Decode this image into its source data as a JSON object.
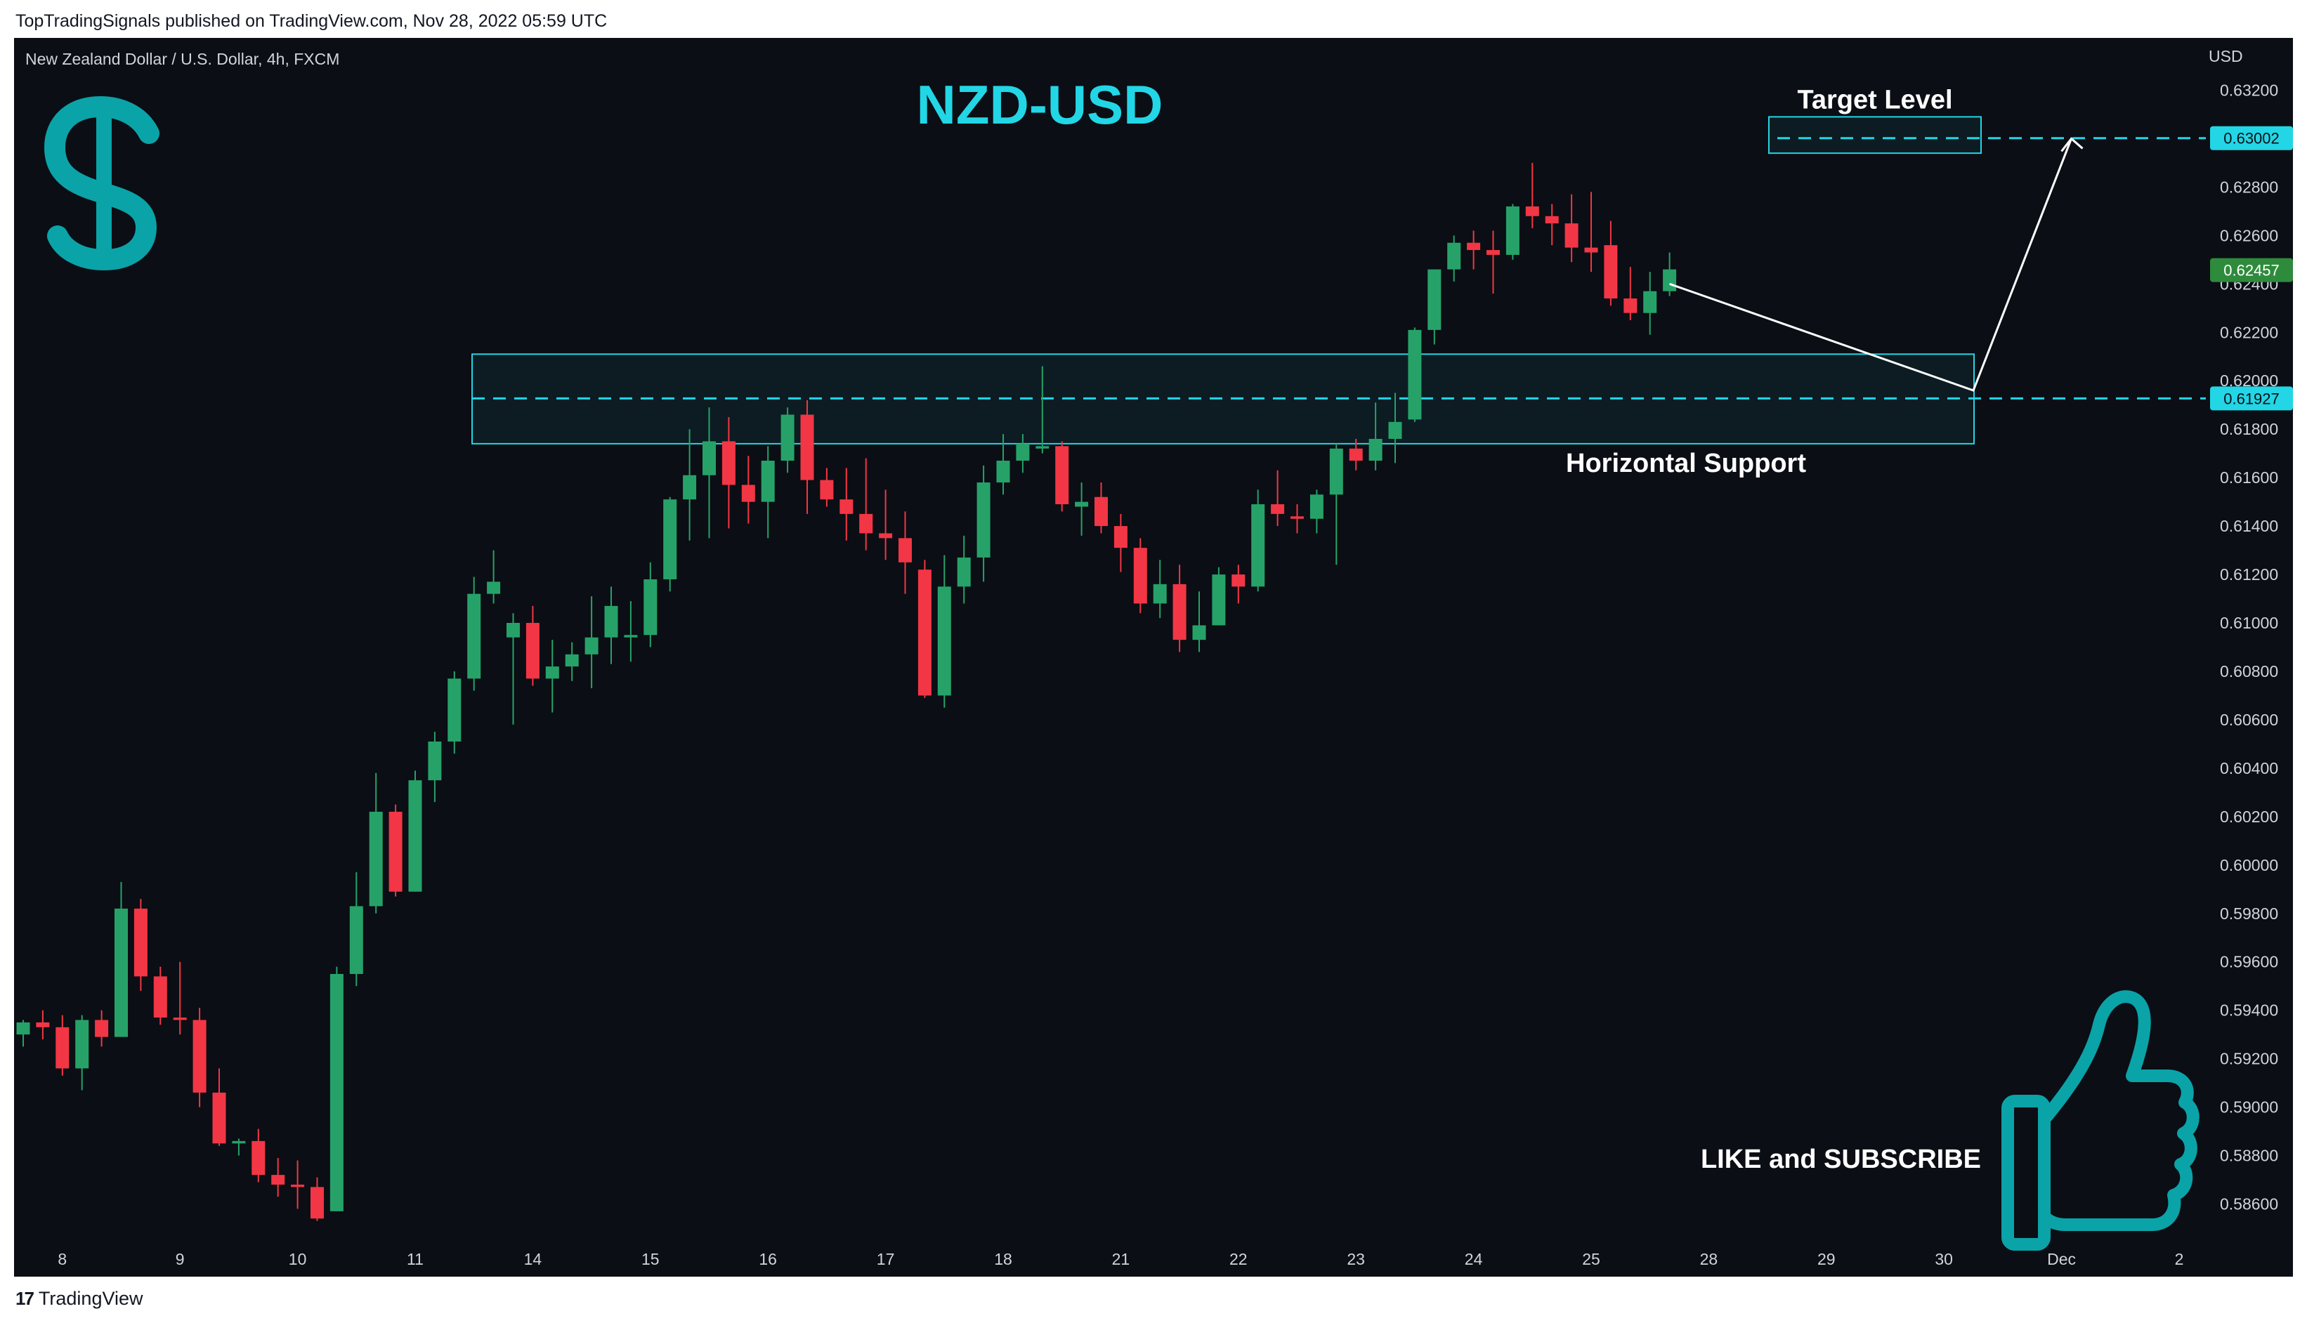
{
  "header": {
    "published_line": "TopTradingSignals published on TradingView.com, Nov 28, 2022 05:59 UTC"
  },
  "footer": {
    "brand_mark": "17",
    "brand_name": "TradingView"
  },
  "colors": {
    "up": "#26a269",
    "down": "#f23645",
    "accent": "#22d6e6",
    "background": "#0b0e14",
    "text": "#d1d4dc",
    "current_price_tag": "#2e8b3c"
  },
  "icons": [
    "dollar-icon",
    "thumbs-up-icon"
  ],
  "chart_data": {
    "type": "candlestick",
    "symbol_line": "New Zealand Dollar / U.S. Dollar, 4h, FXCM",
    "title": "NZD-USD",
    "currency": "USD",
    "timeframe": "4h",
    "ylim": [
      0.585,
      0.633
    ],
    "y_ticks": [
      "0.63200",
      "0.63000",
      "0.62800",
      "0.62600",
      "0.62400",
      "0.62200",
      "0.62000",
      "0.61800",
      "0.61600",
      "0.61400",
      "0.61200",
      "0.61000",
      "0.60800",
      "0.60600",
      "0.60400",
      "0.60200",
      "0.60000",
      "0.59800",
      "0.59600",
      "0.59400",
      "0.59200",
      "0.59000",
      "0.58800",
      "0.58600"
    ],
    "x_ticks": [
      {
        "label": "8",
        "i": 2
      },
      {
        "label": "9",
        "i": 8
      },
      {
        "label": "10",
        "i": 14
      },
      {
        "label": "11",
        "i": 20
      },
      {
        "label": "14",
        "i": 26
      },
      {
        "label": "15",
        "i": 32
      },
      {
        "label": "16",
        "i": 38
      },
      {
        "label": "17",
        "i": 44
      },
      {
        "label": "18",
        "i": 50
      },
      {
        "label": "21",
        "i": 56
      },
      {
        "label": "22",
        "i": 62
      },
      {
        "label": "23",
        "i": 68
      },
      {
        "label": "24",
        "i": 74
      },
      {
        "label": "25",
        "i": 80
      },
      {
        "label": "28",
        "i": 86
      },
      {
        "label": "29",
        "i": 92
      },
      {
        "label": "30",
        "i": 98
      },
      {
        "label": "Dec",
        "i": 104
      },
      {
        "label": "2",
        "i": 110
      }
    ],
    "candles": [
      [
        0.593,
        0.5936,
        0.5925,
        0.5935
      ],
      [
        0.5935,
        0.594,
        0.5928,
        0.5933
      ],
      [
        0.5933,
        0.5938,
        0.5913,
        0.5916
      ],
      [
        0.5916,
        0.5938,
        0.5907,
        0.5936
      ],
      [
        0.5936,
        0.594,
        0.5925,
        0.5929
      ],
      [
        0.5929,
        0.5993,
        0.5929,
        0.5982
      ],
      [
        0.5982,
        0.5986,
        0.5948,
        0.5954
      ],
      [
        0.5954,
        0.5958,
        0.5934,
        0.5937
      ],
      [
        0.5937,
        0.596,
        0.593,
        0.5936
      ],
      [
        0.5936,
        0.5941,
        0.59,
        0.5906
      ],
      [
        0.5906,
        0.5916,
        0.5884,
        0.5885
      ],
      [
        0.5885,
        0.5887,
        0.588,
        0.5886
      ],
      [
        0.5886,
        0.5891,
        0.5869,
        0.5872
      ],
      [
        0.5872,
        0.5879,
        0.5863,
        0.5868
      ],
      [
        0.5868,
        0.5878,
        0.5858,
        0.5867
      ],
      [
        0.5867,
        0.5871,
        0.5853,
        0.5854
      ],
      [
        0.5857,
        0.5958,
        0.5857,
        0.5955
      ],
      [
        0.5955,
        0.5997,
        0.595,
        0.5983
      ],
      [
        0.5983,
        0.6038,
        0.598,
        0.6022
      ],
      [
        0.6022,
        0.6025,
        0.5987,
        0.5989
      ],
      [
        0.5989,
        0.6039,
        0.5989,
        0.6035
      ],
      [
        0.6035,
        0.6055,
        0.6026,
        0.6051
      ],
      [
        0.6051,
        0.608,
        0.6046,
        0.6077
      ],
      [
        0.6077,
        0.6119,
        0.6072,
        0.6112
      ],
      [
        0.6112,
        0.613,
        0.6108,
        0.6117
      ],
      [
        0.6094,
        0.6104,
        0.6058,
        0.61
      ],
      [
        0.61,
        0.6107,
        0.6074,
        0.6077
      ],
      [
        0.6077,
        0.6093,
        0.6063,
        0.6082
      ],
      [
        0.6082,
        0.6092,
        0.6076,
        0.6087
      ],
      [
        0.6087,
        0.6111,
        0.6073,
        0.6094
      ],
      [
        0.6094,
        0.6115,
        0.6083,
        0.6107
      ],
      [
        0.6094,
        0.6109,
        0.6084,
        0.6095
      ],
      [
        0.6095,
        0.6125,
        0.609,
        0.6118
      ],
      [
        0.6118,
        0.6152,
        0.6113,
        0.6151
      ],
      [
        0.6151,
        0.618,
        0.6134,
        0.6161
      ],
      [
        0.6161,
        0.6189,
        0.6135,
        0.6175
      ],
      [
        0.6175,
        0.6185,
        0.6139,
        0.6157
      ],
      [
        0.6157,
        0.6169,
        0.6141,
        0.615
      ],
      [
        0.615,
        0.6173,
        0.6135,
        0.6167
      ],
      [
        0.6167,
        0.6189,
        0.6162,
        0.6186
      ],
      [
        0.6186,
        0.6192,
        0.6145,
        0.6159
      ],
      [
        0.6159,
        0.6164,
        0.6148,
        0.6151
      ],
      [
        0.6151,
        0.6164,
        0.6134,
        0.6145
      ],
      [
        0.6145,
        0.6168,
        0.613,
        0.6137
      ],
      [
        0.6137,
        0.6155,
        0.6126,
        0.6135
      ],
      [
        0.6135,
        0.6146,
        0.6112,
        0.6125
      ],
      [
        0.6122,
        0.6126,
        0.6069,
        0.607
      ],
      [
        0.607,
        0.6128,
        0.6065,
        0.6115
      ],
      [
        0.6115,
        0.6136,
        0.6108,
        0.6127
      ],
      [
        0.6127,
        0.6165,
        0.6117,
        0.6158
      ],
      [
        0.6158,
        0.6178,
        0.6153,
        0.6167
      ],
      [
        0.6167,
        0.6178,
        0.6162,
        0.6174
      ],
      [
        0.6172,
        0.6206,
        0.617,
        0.6173
      ],
      [
        0.6173,
        0.6175,
        0.6146,
        0.6149
      ],
      [
        0.6148,
        0.6158,
        0.6136,
        0.615
      ],
      [
        0.6152,
        0.6158,
        0.6137,
        0.614
      ],
      [
        0.614,
        0.6145,
        0.6121,
        0.6131
      ],
      [
        0.6131,
        0.6135,
        0.6104,
        0.6108
      ],
      [
        0.6108,
        0.6126,
        0.6102,
        0.6116
      ],
      [
        0.6116,
        0.6124,
        0.6088,
        0.6093
      ],
      [
        0.6093,
        0.6113,
        0.6088,
        0.6099
      ],
      [
        0.6099,
        0.6123,
        0.6099,
        0.612
      ],
      [
        0.612,
        0.6124,
        0.6108,
        0.6115
      ],
      [
        0.6115,
        0.6155,
        0.6113,
        0.6149
      ],
      [
        0.6149,
        0.6163,
        0.614,
        0.6145
      ],
      [
        0.6144,
        0.6149,
        0.6137,
        0.6143
      ],
      [
        0.6143,
        0.6155,
        0.6137,
        0.6153
      ],
      [
        0.6153,
        0.6174,
        0.6124,
        0.6172
      ],
      [
        0.6172,
        0.6176,
        0.6163,
        0.6167
      ],
      [
        0.6167,
        0.6191,
        0.6163,
        0.6176
      ],
      [
        0.6176,
        0.6195,
        0.6166,
        0.6183
      ],
      [
        0.6184,
        0.6222,
        0.6183,
        0.6221
      ],
      [
        0.6221,
        0.6246,
        0.6215,
        0.6246
      ],
      [
        0.6246,
        0.626,
        0.6241,
        0.6257
      ],
      [
        0.6257,
        0.6262,
        0.6246,
        0.6254
      ],
      [
        0.6254,
        0.6262,
        0.6236,
        0.6252
      ],
      [
        0.6252,
        0.6273,
        0.625,
        0.6272
      ],
      [
        0.6272,
        0.629,
        0.6263,
        0.6268
      ],
      [
        0.6268,
        0.6273,
        0.6256,
        0.6265
      ],
      [
        0.6265,
        0.6277,
        0.6249,
        0.6255
      ],
      [
        0.6255,
        0.6278,
        0.6245,
        0.6253
      ],
      [
        0.6256,
        0.6266,
        0.6231,
        0.6234
      ],
      [
        0.6234,
        0.6247,
        0.6225,
        0.6228
      ],
      [
        0.6228,
        0.6245,
        0.6219,
        0.6237
      ],
      [
        0.6237,
        0.6253,
        0.6235,
        0.6246
      ]
    ],
    "annotations": {
      "horizontal_support": {
        "label": "Horizontal Support",
        "level": 0.61927,
        "zone": [
          0.6174,
          0.6211
        ],
        "price_tag": "0.61927"
      },
      "target_level": {
        "label": "Target Level",
        "level": 0.63002,
        "zone": [
          0.6294,
          0.6309
        ],
        "price_tag": "0.63002"
      },
      "current_price": {
        "value": 0.62457,
        "price_tag": "0.62457"
      },
      "projection": [
        [
          84,
          0.624
        ],
        [
          99.5,
          0.6196
        ],
        [
          104.5,
          0.63
        ]
      ],
      "call_to_action": "LIKE and SUBSCRIBE"
    }
  }
}
